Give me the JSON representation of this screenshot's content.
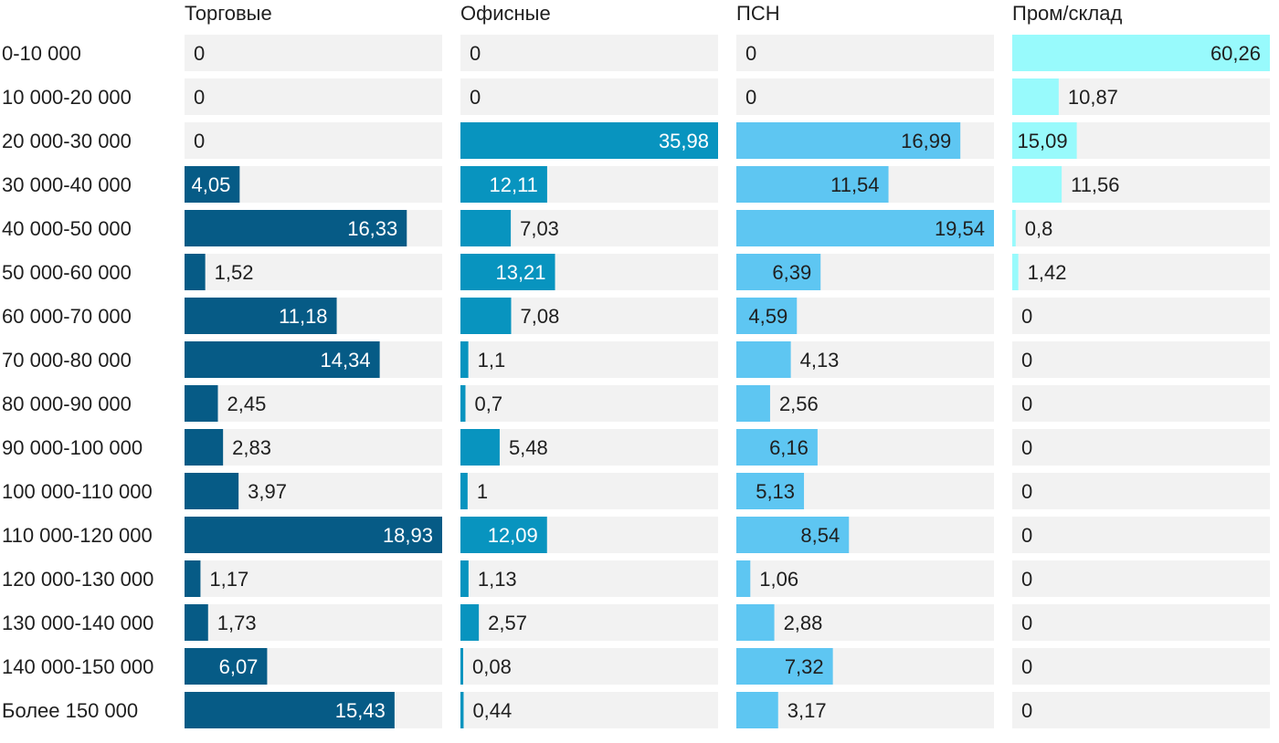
{
  "chart_data": {
    "type": "bar",
    "orientation": "horizontal",
    "layout": "small-multiples",
    "categories": [
      "0-10 000",
      "10 000-20 000",
      "20 000-30 000",
      "30 000-40 000",
      "40 000-50 000",
      "50 000-60 000",
      "60 000-70 000",
      "70 000-80 000",
      "80 000-90 000",
      "90 000-100 000",
      "100 000-110 000",
      "110 000-120 000",
      "120 000-130 000",
      "130 000-140 000",
      "140 000-150 000",
      "Более 150 000"
    ],
    "series": [
      {
        "name": "Торговые",
        "color": "#065b86",
        "max": 18.93,
        "values": [
          0,
          0,
          0,
          4.05,
          16.33,
          1.52,
          11.18,
          14.34,
          2.45,
          2.83,
          3.97,
          18.93,
          1.17,
          1.73,
          6.07,
          15.43
        ],
        "labels": [
          "0",
          "0",
          "0",
          "4,05",
          "16,33",
          "1,52",
          "11,18",
          "14,34",
          "2,45",
          "2,83",
          "3,97",
          "18,93",
          "1,17",
          "1,73",
          "6,07",
          "15,43"
        ]
      },
      {
        "name": "Офисные",
        "color": "#0894bf",
        "max": 35.98,
        "values": [
          0,
          0,
          35.98,
          12.11,
          7.03,
          13.21,
          7.08,
          1.1,
          0.7,
          5.48,
          1,
          12.09,
          1.13,
          2.57,
          0.08,
          0.44
        ],
        "labels": [
          "0",
          "0",
          "35,98",
          "12,11",
          "7,03",
          "13,21",
          "7,08",
          "1,1",
          "0,7",
          "5,48",
          "1",
          "12,09",
          "1,13",
          "2,57",
          "0,08",
          "0,44"
        ]
      },
      {
        "name": "ПСН",
        "color": "#5ec6f2",
        "max": 19.54,
        "values": [
          0,
          0,
          16.99,
          11.54,
          19.54,
          6.39,
          4.59,
          4.13,
          2.56,
          6.16,
          5.13,
          8.54,
          1.06,
          2.88,
          7.32,
          3.17
        ],
        "labels": [
          "0",
          "0",
          "16,99",
          "11,54",
          "19,54",
          "6,39",
          "4,59",
          "4,13",
          "2,56",
          "6,16",
          "5,13",
          "8,54",
          "1,06",
          "2,88",
          "7,32",
          "3,17"
        ]
      },
      {
        "name": "Пром/склад",
        "color": "#98fafc",
        "max": 60.26,
        "values": [
          60.26,
          10.87,
          15.09,
          11.56,
          0.8,
          1.42,
          0,
          0,
          0,
          0,
          0,
          0,
          0,
          0,
          0,
          0
        ],
        "labels": [
          "60,26",
          "10,87",
          "15,09",
          "11,56",
          "0,8",
          "1,42",
          "0",
          "0",
          "0",
          "0",
          "0",
          "0",
          "0",
          "0",
          "0",
          "0"
        ]
      }
    ],
    "track_color": "#f2f2f2",
    "grid": false,
    "legend": "none"
  }
}
